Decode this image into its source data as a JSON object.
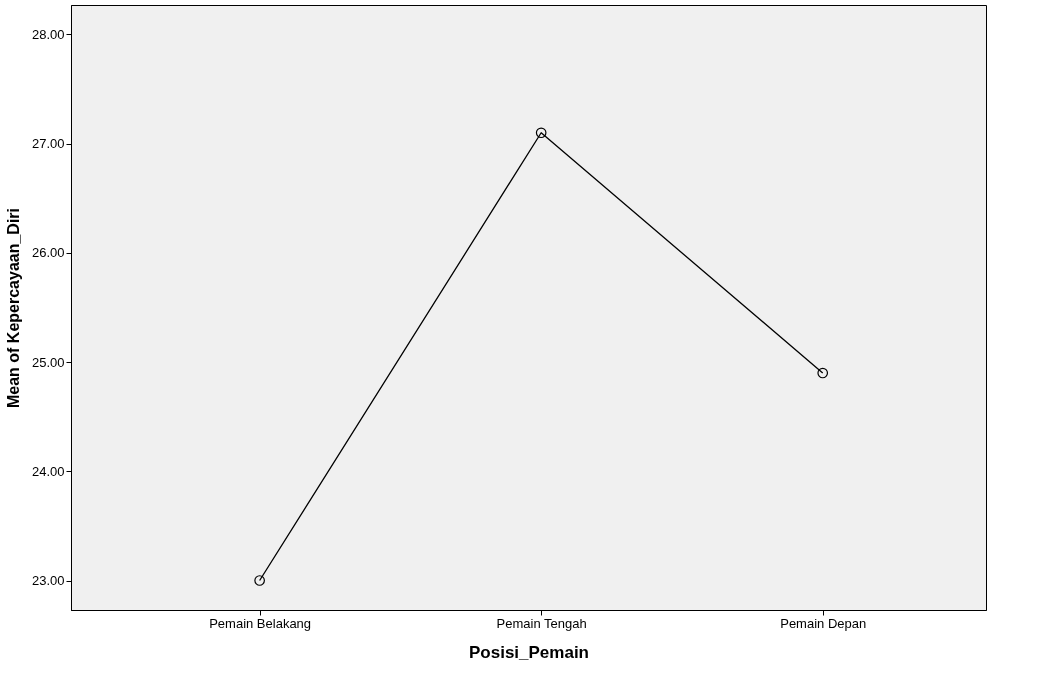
{
  "chart_data": {
    "type": "line",
    "xlabel": "Posisi_Pemain",
    "ylabel": "Mean of Kepercayaan_Diri",
    "categories": [
      "Pemain Belakang",
      "Pemain Tengah",
      "Pemain Depan"
    ],
    "series": [
      {
        "color": "#000000",
        "values": [
          23.0,
          27.1,
          24.9
        ]
      }
    ],
    "ylim": [
      22.73,
      28.27
    ],
    "yticks": [
      {
        "value": 23,
        "label": "23.00"
      },
      {
        "value": 24,
        "label": "24.00"
      },
      {
        "value": 25,
        "label": "25.00"
      },
      {
        "value": 26,
        "label": "26.00"
      },
      {
        "value": 27,
        "label": "27.00"
      },
      {
        "value": 28,
        "label": "28.00"
      }
    ],
    "grid": false,
    "marker": "circle",
    "line_style": "solid"
  }
}
